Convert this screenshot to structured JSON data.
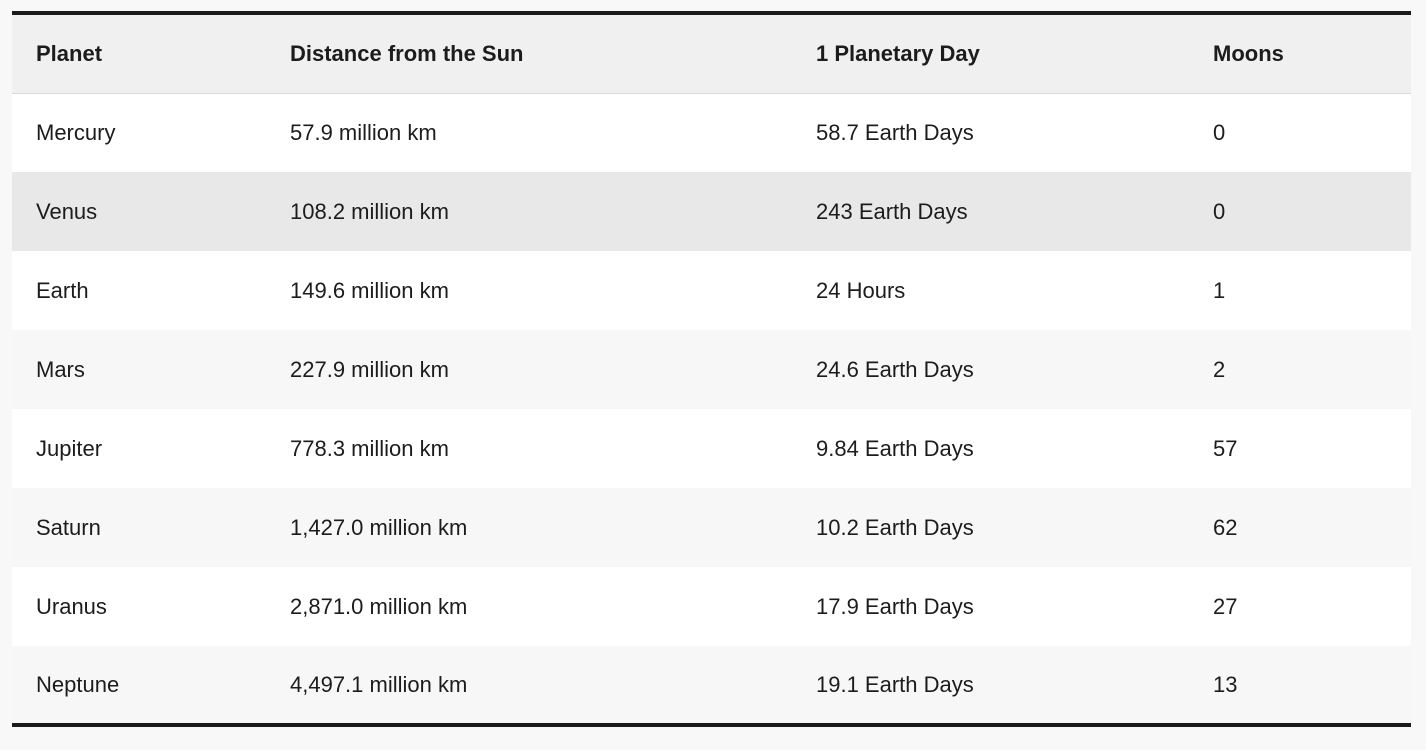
{
  "table": {
    "headers": [
      "Planet",
      "Distance from the Sun",
      "1 Planetary Day",
      "Moons"
    ],
    "rows": [
      {
        "planet": "Mercury",
        "distance": "57.9 million km",
        "day": "58.7 Earth Days",
        "moons": "0"
      },
      {
        "planet": "Venus",
        "distance": "108.2 million km",
        "day": "243 Earth Days",
        "moons": "0"
      },
      {
        "planet": "Earth",
        "distance": "149.6 million km",
        "day": "24 Hours",
        "moons": "1"
      },
      {
        "planet": "Mars",
        "distance": "227.9 million km",
        "day": "24.6 Earth Days",
        "moons": "2"
      },
      {
        "planet": "Jupiter",
        "distance": "778.3 million km",
        "day": "9.84 Earth Days",
        "moons": "57"
      },
      {
        "planet": "Saturn",
        "distance": "1,427.0 million km",
        "day": "10.2 Earth Days",
        "moons": "62"
      },
      {
        "planet": "Uranus",
        "distance": "2,871.0 million km",
        "day": "17.9 Earth Days",
        "moons": "27"
      },
      {
        "planet": "Neptune",
        "distance": "4,497.1 million km",
        "day": "19.1 Earth Days",
        "moons": "13"
      }
    ],
    "highlighted_row": 1
  },
  "colors": {
    "header_bg": "#f0f0f0",
    "row_odd_bg": "#ffffff",
    "row_even_bg": "#f7f7f7",
    "row_hover_bg": "#e8e8e8",
    "rule_color": "#1a1a1a"
  }
}
